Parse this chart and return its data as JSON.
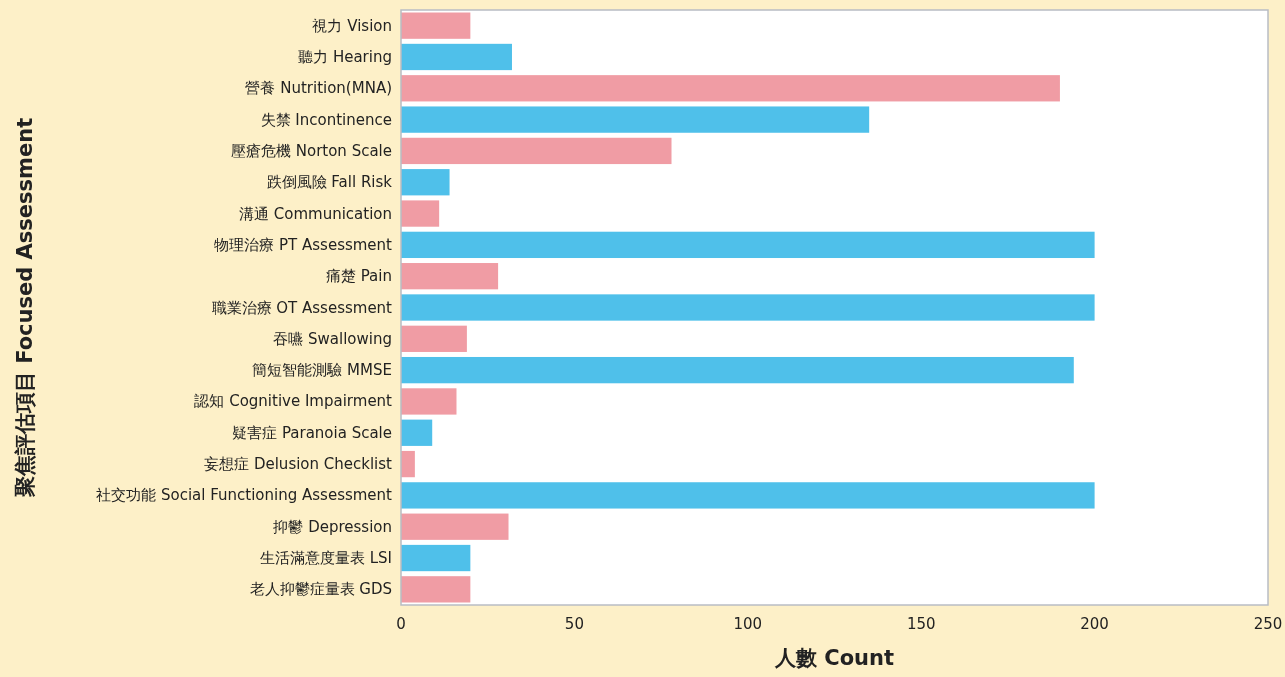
{
  "chart_data": {
    "type": "bar",
    "orientation": "horizontal",
    "xlabel": "人數 Count",
    "ylabel": "聚焦評估項目 Focused Assessment",
    "categories": [
      "視力 Vision",
      "聽力 Hearing",
      "營養 Nutrition(MNA)",
      "失禁 Incontinence",
      "壓瘡危機 Norton Scale",
      "跌倒風險 Fall Risk",
      "溝通 Communication",
      "物理治療 PT Assessment",
      "痛楚 Pain",
      "職業治療 OT Assessment",
      "吞嚥 Swallowing",
      "簡短智能測驗 MMSE",
      "認知 Cognitive Impairment",
      "疑害症 Paranoia Scale",
      "妄想症 Delusion Checklist",
      "社交功能 Social Functioning Assessment",
      "抑鬱 Depression",
      "生活滿意度量表 LSI",
      "老人抑鬱症量表 GDS"
    ],
    "values": [
      20,
      32,
      190,
      135,
      78,
      14,
      11,
      200,
      28,
      200,
      19,
      194,
      16,
      9,
      4,
      200,
      31,
      20,
      20
    ],
    "colors": [
      "#f09ca4",
      "#4fc0ea",
      "#f09ca4",
      "#4fc0ea",
      "#f09ca4",
      "#4fc0ea",
      "#f09ca4",
      "#4fc0ea",
      "#f09ca4",
      "#4fc0ea",
      "#f09ca4",
      "#4fc0ea",
      "#f09ca4",
      "#4fc0ea",
      "#f09ca4",
      "#4fc0ea",
      "#f09ca4",
      "#4fc0ea",
      "#f09ca4"
    ],
    "xlim": [
      0,
      250
    ],
    "xticks": [
      0,
      50,
      100,
      150,
      200,
      250
    ]
  }
}
